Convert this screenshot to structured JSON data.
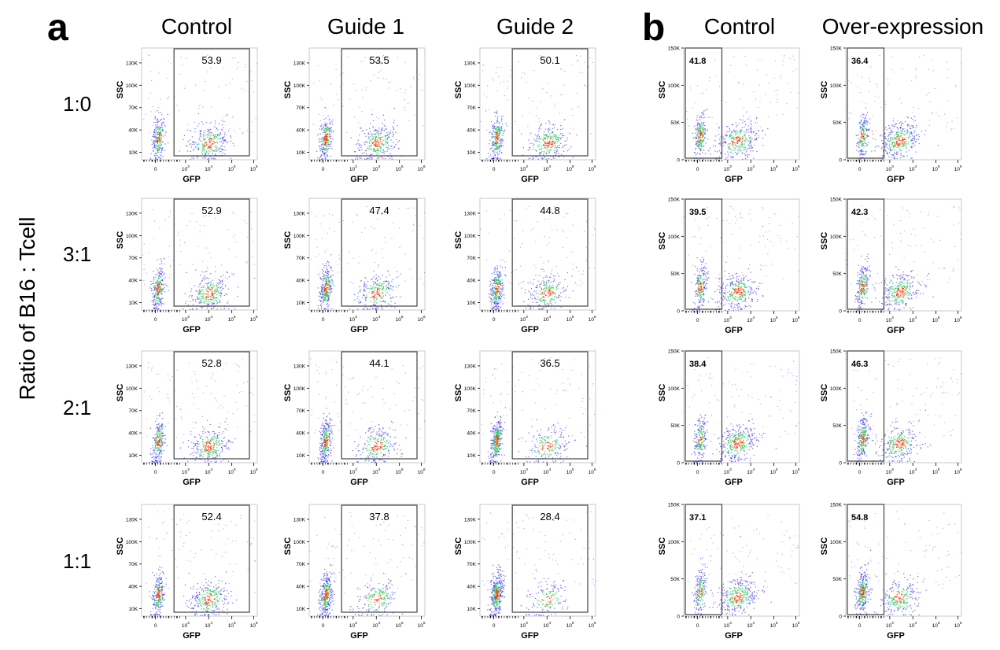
{
  "figure": {
    "panel_a_letter": "a",
    "panel_b_letter": "b",
    "y_title": "Ratio of B16 : Tcell"
  },
  "columns_a": [
    "Control",
    "Guide 1",
    "Guide 2"
  ],
  "columns_b": [
    "Control",
    "Over-expression"
  ],
  "rows": [
    "1:0",
    "3:1",
    "2:1",
    "1:1"
  ],
  "colors": {
    "low": "#2b2bff",
    "mid": "#33cc66",
    "high": "#ff3300",
    "gate": "#444444"
  },
  "chart_data": [
    {
      "type": "scatter",
      "panel": "a",
      "description_kind": "flow cytometry density plots",
      "xlabel": "GFP",
      "ylabel": "SSC",
      "xticks": [
        "0",
        "10^3",
        "10^4",
        "10^5",
        "10^6"
      ],
      "yticks": [
        "10K",
        "40K",
        "70K",
        "100K",
        "130K"
      ],
      "gate": "GFP+",
      "row_labels": [
        "1:0",
        "3:1",
        "2:1",
        "1:1"
      ],
      "col_labels": [
        "Control",
        "Guide 1",
        "Guide 2"
      ],
      "gate_percent": [
        [
          53.9,
          53.5,
          50.1
        ],
        [
          52.9,
          47.4,
          44.8
        ],
        [
          52.8,
          44.1,
          36.5
        ],
        [
          52.4,
          37.8,
          28.4
        ]
      ]
    },
    {
      "type": "scatter",
      "panel": "b",
      "xlabel": "GFP",
      "ylabel": "SSC",
      "xticks": [
        "0",
        "10^3",
        "10^4",
        "10^5",
        "10^6"
      ],
      "yticks": [
        "0",
        "50K",
        "100K",
        "150K"
      ],
      "gate": "GFP-",
      "row_labels": [
        "1:0",
        "3:1",
        "2:1",
        "1:1"
      ],
      "col_labels": [
        "Control",
        "Over-expression"
      ],
      "gate_percent": [
        [
          41.8,
          36.4
        ],
        [
          39.5,
          42.3
        ],
        [
          38.4,
          46.3
        ],
        [
          37.1,
          54.8
        ]
      ]
    }
  ]
}
